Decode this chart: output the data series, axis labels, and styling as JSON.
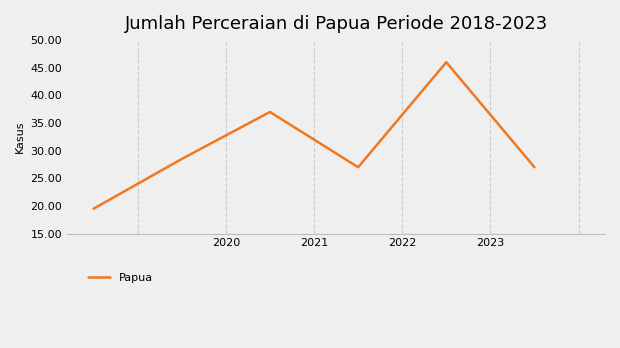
{
  "title": "Jumlah Perceraian di Papua Periode 2018-2023",
  "ylabel": "Kasus",
  "years": [
    2018,
    2019,
    2020,
    2021,
    2022,
    2023
  ],
  "values": [
    19.5,
    28.5,
    37.0,
    27.0,
    46.0,
    27.0
  ],
  "line_color": "#f07820",
  "line_width": 1.8,
  "ylim": [
    15.0,
    50.0
  ],
  "yticks": [
    15.0,
    20.0,
    25.0,
    30.0,
    35.0,
    40.0,
    45.0,
    50.0
  ],
  "grid_positions": [
    2018.5,
    2019.5,
    2020.5,
    2021.5,
    2022.5,
    2023.5
  ],
  "xtick_positions": [
    2019.5,
    2020.5,
    2021.5,
    2022.5
  ],
  "xtick_labels": [
    "2020",
    "2021",
    "2022",
    "2023"
  ],
  "xlim": [
    2017.7,
    2023.8
  ],
  "grid_color": "#cccccc",
  "background_color": "#efefef",
  "legend_label": "Papua",
  "title_fontsize": 13,
  "axis_fontsize": 8,
  "tick_fontsize": 8,
  "legend_fontsize": 8
}
